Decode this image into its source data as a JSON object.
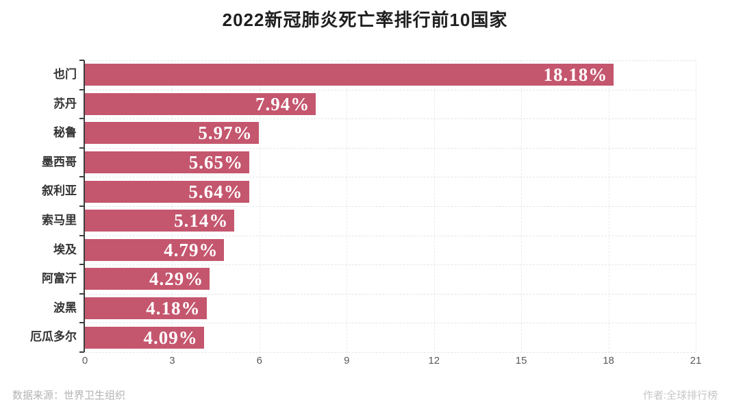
{
  "title": "2022新冠肺炎死亡率排行前10国家",
  "footer": {
    "source": "数据来源：世界卫生组织",
    "author": "作者:全球排行榜"
  },
  "chart_data": {
    "type": "bar",
    "orientation": "horizontal",
    "title": "2022新冠肺炎死亡率排行前10国家",
    "categories": [
      "也门",
      "苏丹",
      "秘鲁",
      "墨西哥",
      "叙利亚",
      "索马里",
      "埃及",
      "阿富汗",
      "波黑",
      "厄瓜多尔"
    ],
    "values": [
      18.18,
      7.94,
      5.97,
      5.65,
      5.64,
      5.14,
      4.79,
      4.29,
      4.18,
      4.09
    ],
    "value_labels": [
      "18.18%",
      "7.94%",
      "5.97%",
      "5.65%",
      "5.64%",
      "5.14%",
      "4.79%",
      "4.29%",
      "4.18%",
      "4.09%"
    ],
    "xlabel": "",
    "ylabel": "",
    "xlim": [
      0,
      21
    ],
    "x_ticks": [
      0,
      3,
      6,
      9,
      12,
      15,
      18,
      21
    ],
    "bar_color": "#c4566e",
    "value_text_color": "#ffffff",
    "grid": true,
    "legend": false
  }
}
